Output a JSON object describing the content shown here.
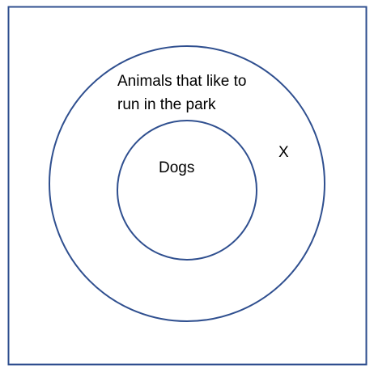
{
  "diagram": {
    "outer_set_label_line1": "Animals that like to",
    "outer_set_label_line2": "run in the park",
    "inner_set_label": "Dogs",
    "point_label": "X"
  },
  "colors": {
    "stroke": "#2f4f8f",
    "background": "#ffffff",
    "text": "#000000"
  }
}
